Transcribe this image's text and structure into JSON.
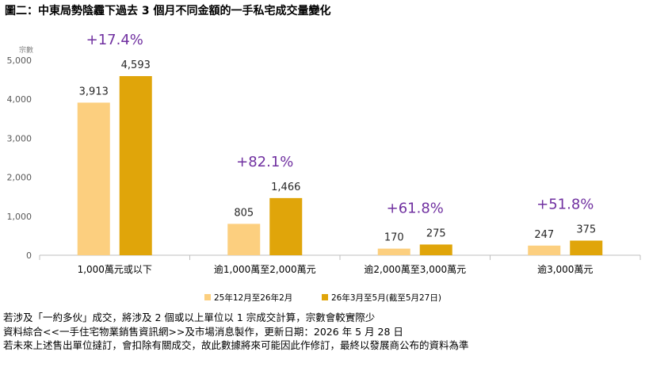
{
  "title": "圖二：中東局勢陰霾下過去 3 個月不同金額的一手私宅成交量變化",
  "chart_data": {
    "type": "bar",
    "ylabel": "宗數",
    "ylim": [
      0,
      5000
    ],
    "yticks": [
      "0",
      "1,000",
      "2,000",
      "3,000",
      "4,000",
      "5,000"
    ],
    "categories": [
      "1,000萬元或以下",
      "逾1,000萬至2,000萬元",
      "逾2,000萬至3,000萬元",
      "逾3,000萬元"
    ],
    "series": [
      {
        "name": "25年12月至26年2月",
        "values": [
          3913,
          805,
          170,
          247
        ],
        "labels": [
          "3,913",
          "805",
          "170",
          "247"
        ],
        "color": "#FCCF7F"
      },
      {
        "name": "26年3月至5月(截至5月27日)",
        "values": [
          4593,
          1466,
          275,
          375
        ],
        "labels": [
          "4,593",
          "1,466",
          "275",
          "375"
        ],
        "color": "#E0A50A"
      }
    ],
    "changes": [
      "+17.4%",
      "+82.1%",
      "+61.8%",
      "+51.8%"
    ],
    "change_color": "#7030A0",
    "grid": false,
    "legend_position": "bottom"
  },
  "notes": [
    "若涉及「一約多伙」成交，將涉及 2 個或以上單位以 1 宗成交計算，宗數會較實際少",
    "資料綜合<<一手住宅物業銷售資訊網>>及市場消息製作，更新日期：2026 年 5 月 28 日",
    "若未來上述售出單位撻訂，會扣除有關成交，故此數據將來可能因此作修訂，最終以發展商公布的資料為準"
  ]
}
